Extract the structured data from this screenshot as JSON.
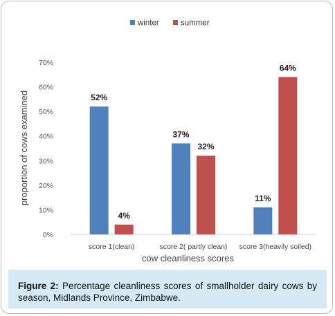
{
  "chart_data": {
    "type": "bar",
    "categories": [
      "score 1(clean)",
      "score 2( partly clean)",
      "score 3(heavily soiled)"
    ],
    "series": [
      {
        "name": "winter",
        "values": [
          52,
          37,
          11
        ],
        "color": "#4f81bd",
        "labels": [
          "52%",
          "37%",
          "11%"
        ]
      },
      {
        "name": "summer",
        "values": [
          4,
          32,
          64
        ],
        "color": "#c0504d",
        "labels": [
          "4%",
          "32%",
          "64%"
        ]
      }
    ],
    "xlabel": "cow cleanliness scores",
    "ylabel": "proportion of cows examined",
    "ylim": [
      0,
      70
    ],
    "yticks": [
      "0%",
      "10%",
      "20%",
      "30%",
      "40%",
      "50%",
      "60%",
      "70%"
    ],
    "grid": false,
    "legend": "top-center"
  },
  "caption": {
    "label": "Figure 2:",
    "text": " Percentage cleanliness scores of smallholder dairy cows by season, Midlands Province, Zimbabwe."
  }
}
